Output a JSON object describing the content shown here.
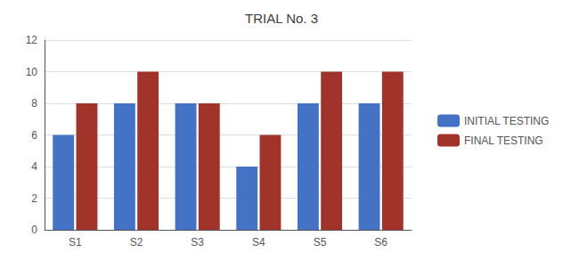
{
  "chart_data": {
    "type": "bar",
    "title": "TRIAL No. 3",
    "categories": [
      "S1",
      "S2",
      "S3",
      "S4",
      "S5",
      "S6"
    ],
    "series": [
      {
        "name": "INITIAL TESTING",
        "color": "#4472C4",
        "values": [
          6,
          8,
          8,
          4,
          8,
          8
        ]
      },
      {
        "name": "FINAL TESTING",
        "color": "#A0342A",
        "values": [
          8,
          10,
          8,
          6,
          10,
          10
        ]
      }
    ],
    "ylim": [
      0,
      12
    ],
    "yticks": [
      0,
      2,
      4,
      6,
      8,
      10,
      12
    ],
    "grid": true,
    "legend": "right"
  }
}
